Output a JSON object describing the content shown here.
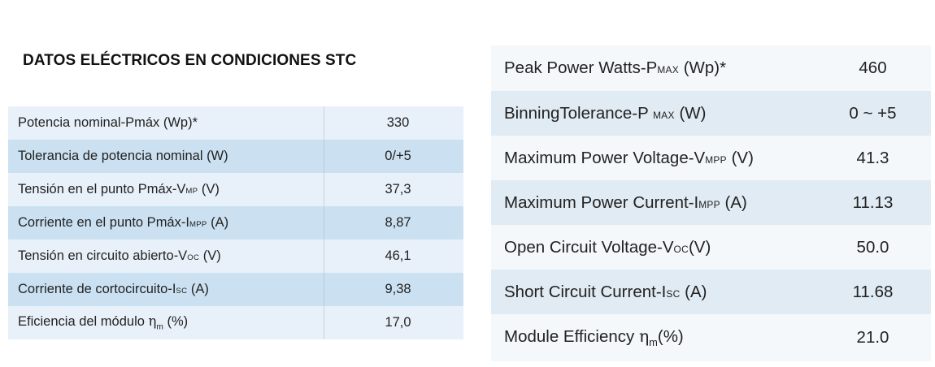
{
  "left": {
    "title": "DATOS ELÉCTRICOS EN CONDICIONES STC",
    "rows": [
      {
        "label": "Potencia nominal-Pmáx (Wp)*",
        "value": "330"
      },
      {
        "label": "Tolerancia de potencia nominal (W)",
        "value": "0/+5"
      },
      {
        "label_main": "Tensión en el punto Pmáx-V",
        "label_sub": "MP",
        "label_tail": " (V)",
        "value": "37,3"
      },
      {
        "label_main": "Corriente en el punto Pmáx-I",
        "label_sub": "MPP",
        "label_tail": " (A)",
        "value": "8,87"
      },
      {
        "label_main": "Tensión en circuito abierto-V",
        "label_sub": "OC",
        "label_tail": " (V)",
        "value": "46,1"
      },
      {
        "label_main": "Corriente de cortocircuito-I",
        "label_sub": "SC",
        "label_tail": " (A)",
        "value": "9,38"
      },
      {
        "label_main": "Eficiencia del módulo ",
        "label_eta": "η",
        "label_sub": "m",
        "label_tail": " (%)",
        "value": "17,0"
      }
    ]
  },
  "right": {
    "rows": [
      {
        "label_main": "Peak Power Watts-P",
        "label_sub": "MAX",
        "label_tail": " (Wp)*",
        "value": "460"
      },
      {
        "label_main": "BinningTolerance-P ",
        "label_sub": "MAX",
        "label_tail": " (W)",
        "value": "0 ~ +5"
      },
      {
        "label_main": "Maximum Power Voltage-V",
        "label_sub": "MPP",
        "label_tail": " (V)",
        "value": "41.3"
      },
      {
        "label_main": "Maximum Power Current-I",
        "label_sub": "MPP",
        "label_tail": " (A)",
        "value": "11.13"
      },
      {
        "label_main": "Open Circuit Voltage-V",
        "label_sub": "OC",
        "label_tail": "(V)",
        "value": "50.0"
      },
      {
        "label_main": "Short Circuit Current-I",
        "label_sub": "SC",
        "label_tail": " (A)",
        "value": "11.68"
      },
      {
        "label_main": "Module Efficiency ",
        "label_eta": "η",
        "label_sub": "m",
        "label_tail": "(%)",
        "value": "21.0"
      }
    ]
  },
  "colors": {
    "left_row_light": "#e8f1f9",
    "left_row_dark": "#cbe1f2",
    "right_row_light": "#f4f8fb",
    "right_row_dark": "#e1ebf3",
    "text": "#222222"
  }
}
